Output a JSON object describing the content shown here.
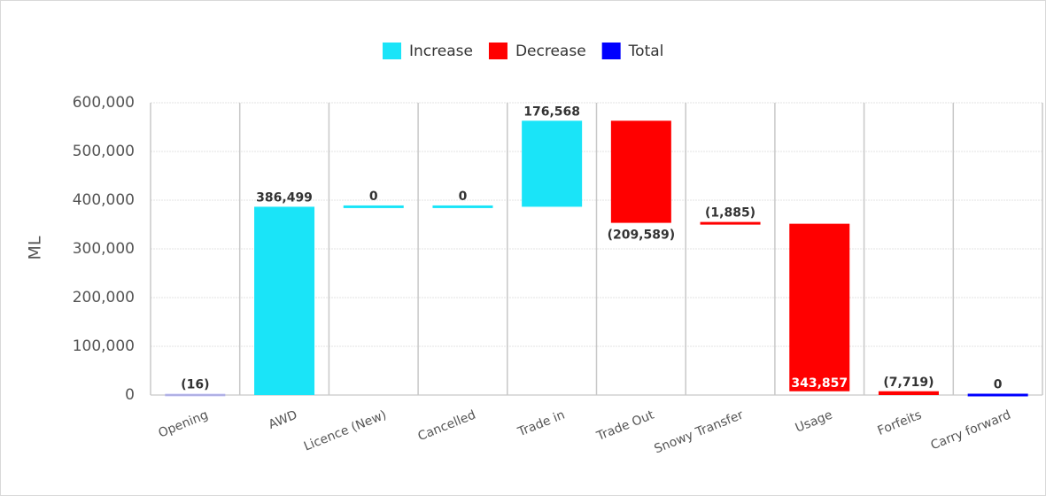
{
  "chart_data": {
    "type": "waterfall",
    "y_label": "ML",
    "legend": [
      {
        "name": "Increase",
        "color": "#1ae4f8"
      },
      {
        "name": "Decrease",
        "color": "#ff0000"
      },
      {
        "name": "Total",
        "color": "#0000ff"
      }
    ],
    "categories": [
      "Opening",
      "AWD",
      "Licence (New)",
      "Cancelled",
      "Trade in",
      "Trade Out",
      "Snowy Transfer",
      "Usage",
      "Forfeits",
      "Carry forward"
    ],
    "kinds": [
      "Total",
      "Increase",
      "Increase",
      "Increase",
      "Increase",
      "Decrease",
      "Decrease",
      "Decrease",
      "Decrease",
      "Total"
    ],
    "values": [
      -16,
      386499,
      0,
      0,
      176568,
      -209589,
      -1885,
      -343857,
      -7719,
      0
    ],
    "value_labels": [
      "(16)",
      "386,499",
      "0",
      "0",
      "176,568",
      "(209,589)",
      "(1,885)",
      "343,857",
      "(7,719)",
      "0"
    ],
    "ylim": [
      0,
      600000
    ],
    "yticks": [
      {
        "value": 0,
        "label": "0"
      },
      {
        "value": 100000,
        "label": "100,000"
      },
      {
        "value": 200000,
        "label": "200,000"
      },
      {
        "value": 300000,
        "label": "300,000"
      },
      {
        "value": 400000,
        "label": "400,000"
      },
      {
        "value": 500000,
        "label": "500,000"
      },
      {
        "value": 600000,
        "label": "600,000"
      }
    ],
    "grid": true
  }
}
